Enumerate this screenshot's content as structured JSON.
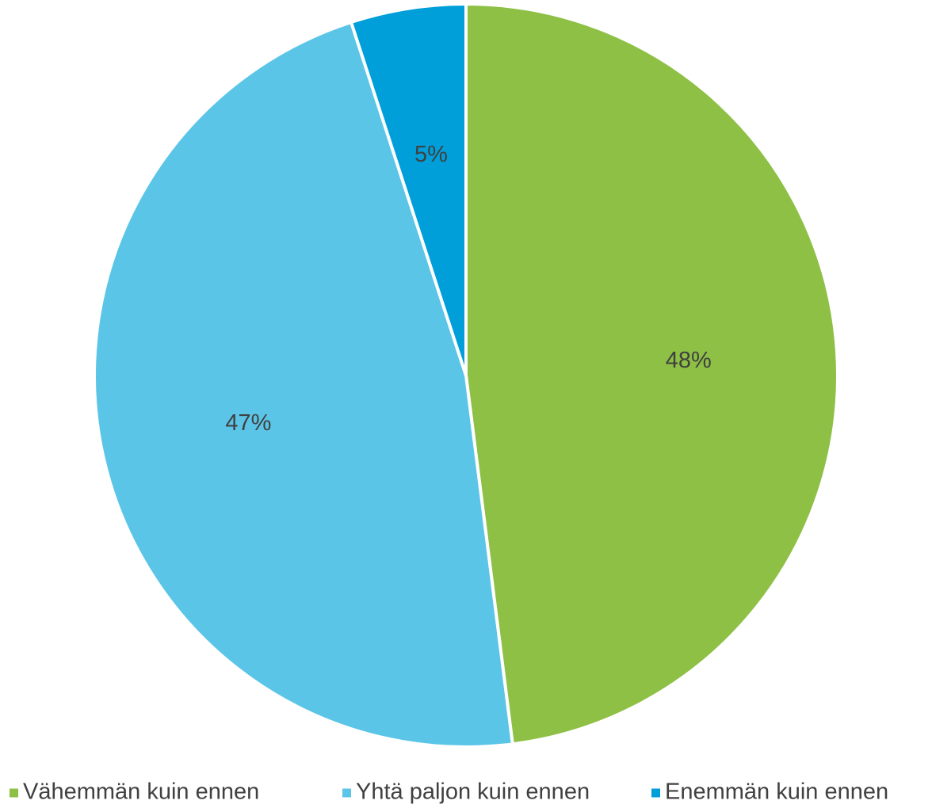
{
  "chart_data": {
    "type": "pie",
    "start_angle_deg": 0,
    "direction": "clockwise",
    "legend_position": "bottom",
    "slices": [
      {
        "name": "Vähemmän kuin ennen",
        "value": 48,
        "label": "48%",
        "color": "#8DC044"
      },
      {
        "name": "Yhtä paljon kuin ennen",
        "value": 47,
        "label": "47%",
        "color": "#5BC5E8"
      },
      {
        "name": "Enemmän kuin ennen",
        "value": 5,
        "label": "5%",
        "color": "#009FDA"
      }
    ]
  }
}
